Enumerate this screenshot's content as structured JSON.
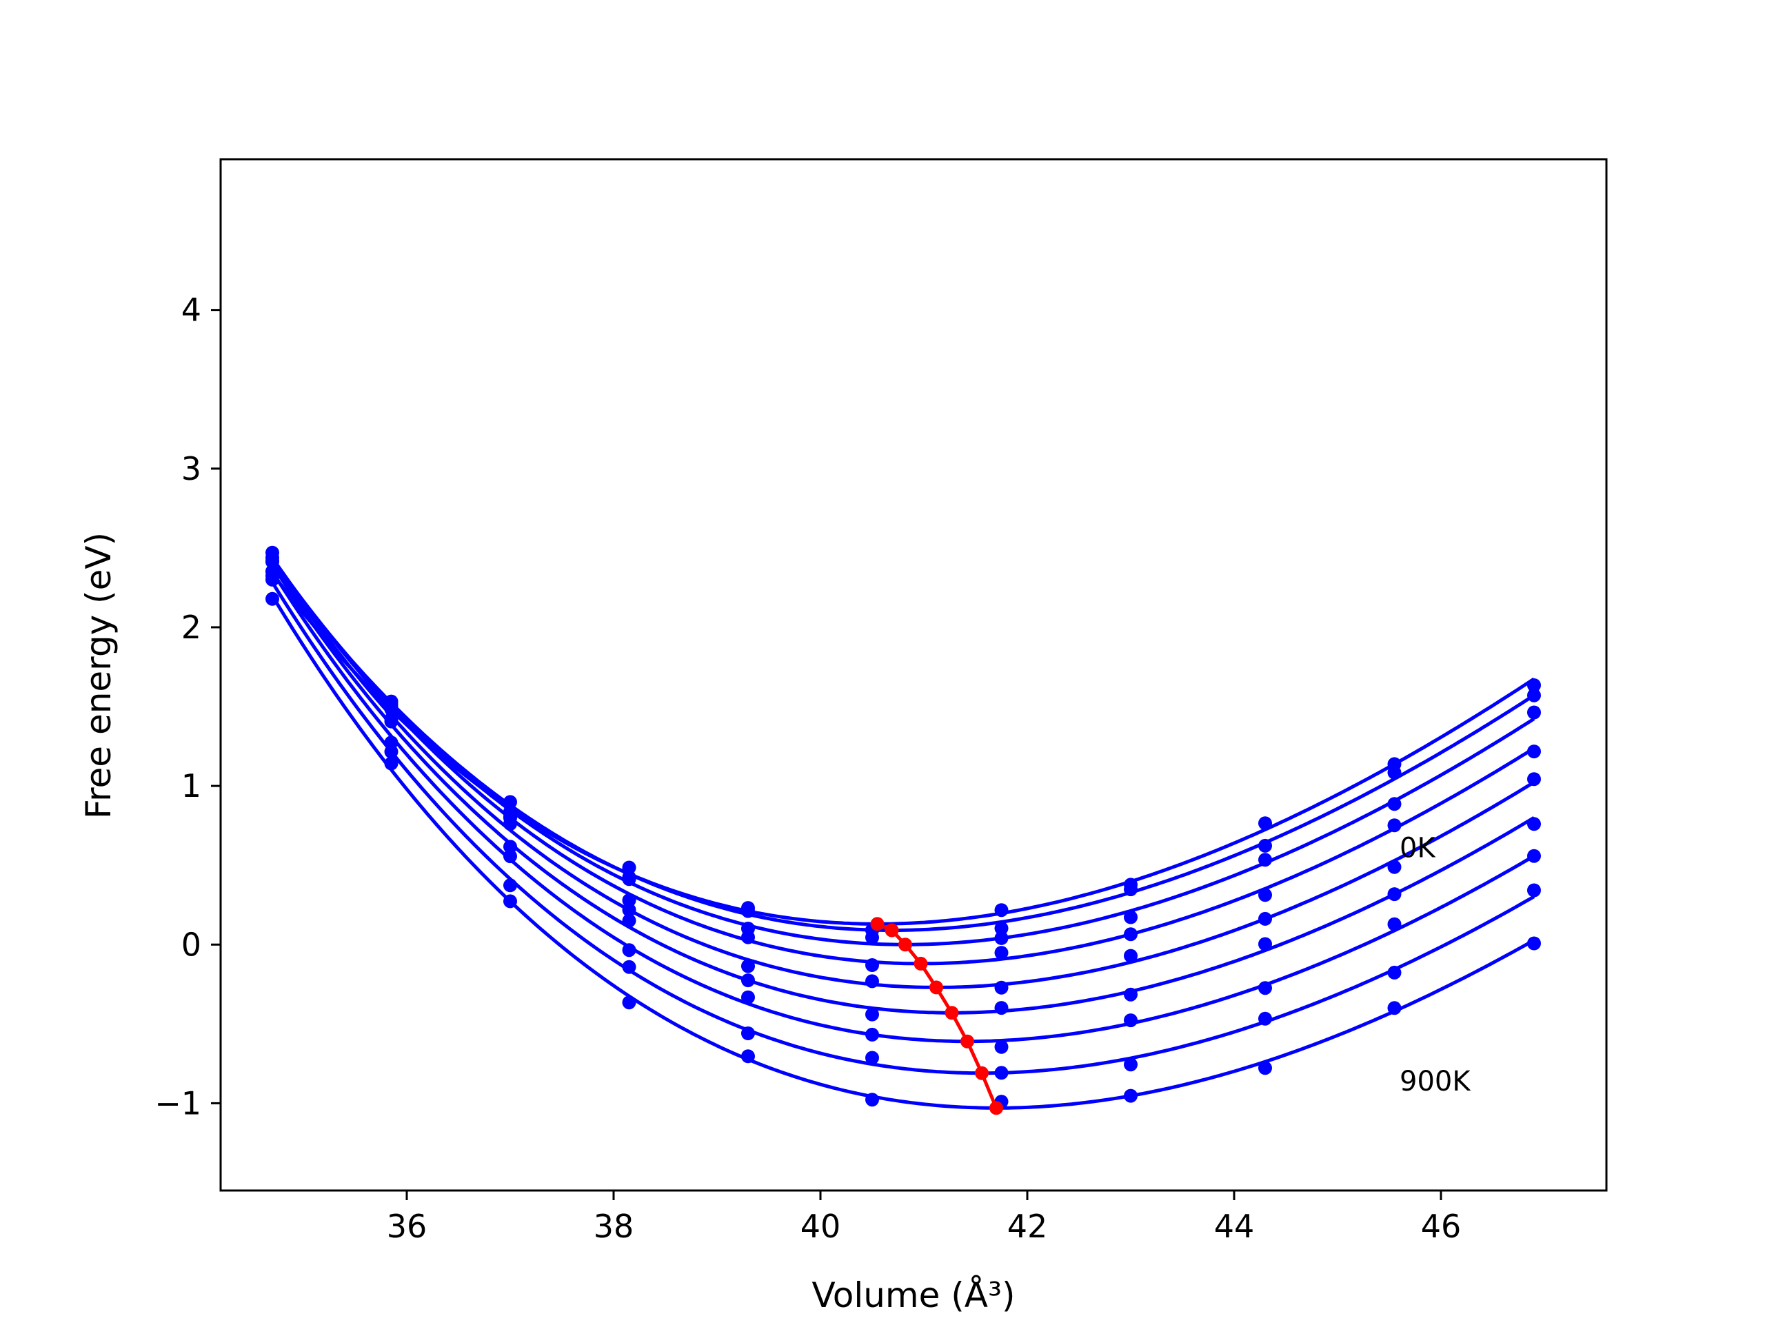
{
  "chart_data": {
    "type": "line",
    "title": "",
    "xlabel": "Volume (Å³)",
    "ylabel": "Free energy (eV)",
    "xlim": [
      34.2,
      47.6
    ],
    "ylim": [
      -1.55,
      4.95
    ],
    "xticks": [
      36,
      38,
      40,
      42,
      44,
      46
    ],
    "yticks": [
      -1,
      0,
      1,
      2,
      3,
      4
    ],
    "ytick_labels": [
      "−1",
      "0",
      "1",
      "2",
      "3",
      "4"
    ],
    "grid": false,
    "legend": "none",
    "colors": {
      "curves": "#0000ff",
      "minimum_path": "#ff0000",
      "axes": "#000000"
    },
    "series_labels": [
      {
        "text": "0K",
        "x": 45.6,
        "y": 0.55
      },
      {
        "text": "900K",
        "x": 45.6,
        "y": -0.92
      }
    ],
    "fit_curves": [
      {
        "v0": 40.55,
        "e0": 0.13
      },
      {
        "v0": 40.69,
        "e0": 0.09
      },
      {
        "v0": 40.82,
        "e0": 0.0
      },
      {
        "v0": 40.97,
        "e0": -0.12
      },
      {
        "v0": 41.12,
        "e0": -0.27
      },
      {
        "v0": 41.27,
        "e0": -0.43
      },
      {
        "v0": 41.42,
        "e0": -0.61
      },
      {
        "v0": 41.56,
        "e0": -0.81
      },
      {
        "v0": 41.7,
        "e0": -1.03
      }
    ],
    "sample_volumes": [
      34.7,
      35.85,
      37.0,
      38.15,
      39.3,
      40.5,
      41.75,
      43.0,
      44.3,
      45.55,
      46.9
    ],
    "minimum_path": {
      "x": [
        40.55,
        40.69,
        40.82,
        40.97,
        41.12,
        41.27,
        41.42,
        41.56,
        41.7
      ],
      "y": [
        0.13,
        0.09,
        0.0,
        -0.12,
        -0.27,
        -0.43,
        -0.61,
        -0.81,
        -1.03
      ]
    }
  }
}
